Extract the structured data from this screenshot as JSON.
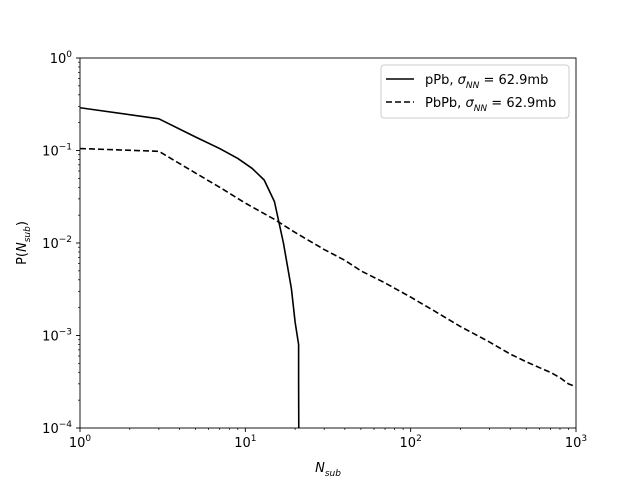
{
  "chart_data": {
    "type": "line",
    "title": "",
    "xlabel": {
      "base": "N",
      "sub": "sub"
    },
    "ylabel": {
      "prefix": "P(",
      "base": "N",
      "sub": "sub",
      "suffix": ")"
    },
    "xscale": "log",
    "yscale": "log",
    "xlim": [
      1,
      1000
    ],
    "ylim": [
      0.0001,
      1
    ],
    "x_ticks": [
      {
        "value": 1,
        "base": "10",
        "exp": "0"
      },
      {
        "value": 10,
        "base": "10",
        "exp": "1"
      },
      {
        "value": 100,
        "base": "10",
        "exp": "2"
      },
      {
        "value": 1000,
        "base": "10",
        "exp": "3"
      }
    ],
    "y_ticks": [
      {
        "value": 0.0001,
        "base": "10",
        "exp": "−4"
      },
      {
        "value": 0.001,
        "base": "10",
        "exp": "−3"
      },
      {
        "value": 0.01,
        "base": "10",
        "exp": "−2"
      },
      {
        "value": 0.1,
        "base": "10",
        "exp": "−1"
      },
      {
        "value": 1,
        "base": "10",
        "exp": "0"
      }
    ],
    "grid": false,
    "legend_position": "top-right",
    "series": [
      {
        "name": "pPb",
        "legend_label": {
          "prefix": "pPb, ",
          "sigma": "σ",
          "sub": "NN",
          "suffix": " = 62.9mb"
        },
        "style": "solid",
        "color": "#000000",
        "x": [
          1,
          3,
          5,
          7,
          9,
          11,
          13,
          15,
          17,
          19,
          20,
          21,
          21,
          21.05
        ],
        "y": [
          0.29,
          0.22,
          0.14,
          0.105,
          0.082,
          0.064,
          0.048,
          0.028,
          0.01,
          0.0032,
          0.0014,
          0.0008,
          0.0003,
          0.0001
        ]
      },
      {
        "name": "PbPb",
        "legend_label": {
          "prefix": "PbPb, ",
          "sigma": "σ",
          "sub": "NN",
          "suffix": " = 62.9mb"
        },
        "style": "dashed",
        "color": "#000000",
        "x": [
          1,
          3,
          5,
          7,
          10,
          15,
          20,
          30,
          40,
          50,
          70,
          100,
          150,
          200,
          300,
          400,
          500,
          600,
          700,
          800,
          900,
          1000
        ],
        "y": [
          0.105,
          0.098,
          0.057,
          0.04,
          0.027,
          0.018,
          0.013,
          0.0085,
          0.0065,
          0.005,
          0.0037,
          0.0026,
          0.0017,
          0.00125,
          0.00085,
          0.00063,
          0.00052,
          0.00045,
          0.0004,
          0.00035,
          0.0003,
          0.00028
        ]
      }
    ]
  }
}
